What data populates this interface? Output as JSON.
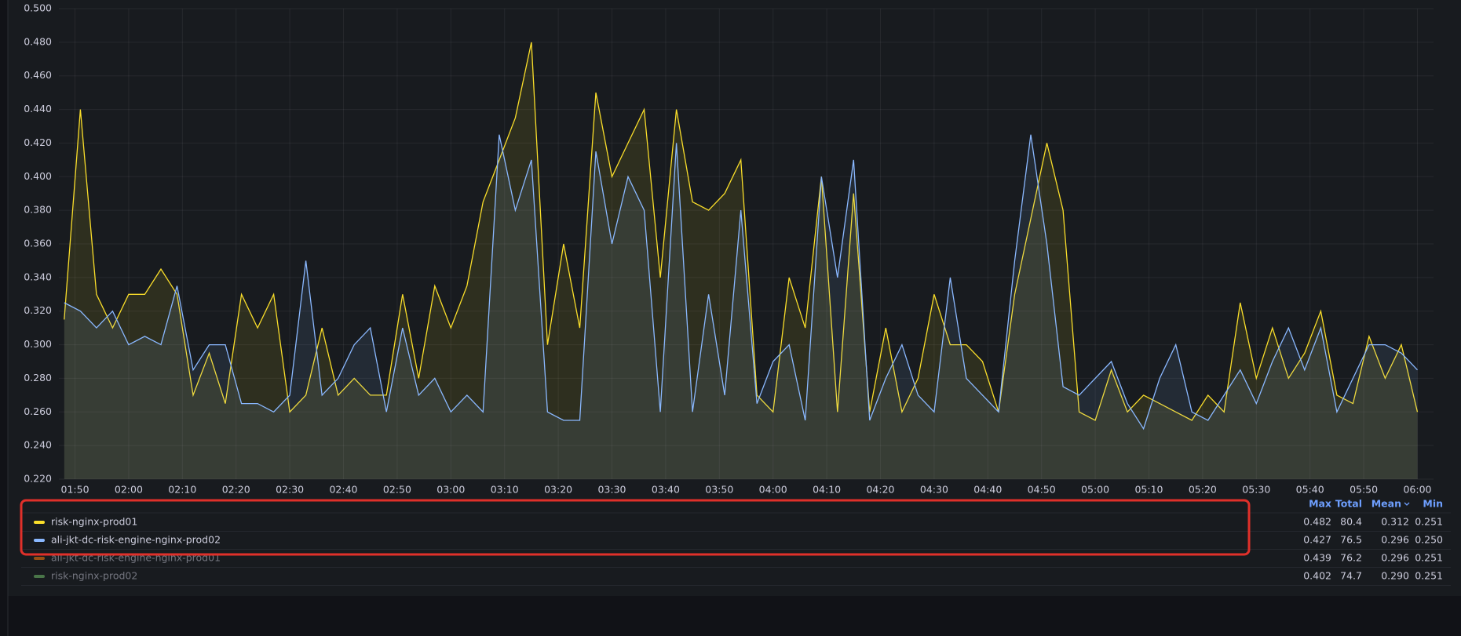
{
  "chart_data": {
    "type": "line",
    "x": [
      "01:48",
      "01:51",
      "01:54",
      "01:57",
      "02:00",
      "02:03",
      "02:06",
      "02:09",
      "02:12",
      "02:15",
      "02:18",
      "02:21",
      "02:24",
      "02:27",
      "02:30",
      "02:33",
      "02:36",
      "02:39",
      "02:42",
      "02:45",
      "02:48",
      "02:51",
      "02:54",
      "02:57",
      "03:00",
      "03:03",
      "03:06",
      "03:09",
      "03:12",
      "03:15",
      "03:18",
      "03:21",
      "03:24",
      "03:27",
      "03:30",
      "03:33",
      "03:36",
      "03:39",
      "03:42",
      "03:45",
      "03:48",
      "03:51",
      "03:54",
      "03:57",
      "04:00",
      "04:03",
      "04:06",
      "04:09",
      "04:12",
      "04:15",
      "04:18",
      "04:21",
      "04:24",
      "04:27",
      "04:30",
      "04:33",
      "04:36",
      "04:39",
      "04:42",
      "04:45",
      "04:48",
      "04:51",
      "04:54",
      "04:57",
      "05:00",
      "05:03",
      "05:06",
      "05:09",
      "05:12",
      "05:15",
      "05:18",
      "05:21",
      "05:24",
      "05:27",
      "05:30",
      "05:33",
      "05:36",
      "05:39",
      "05:42",
      "05:45",
      "05:48",
      "05:51",
      "05:54",
      "05:57",
      "06:00"
    ],
    "series": [
      {
        "name": "risk-nginx-prod01",
        "color": "#fade2a",
        "hidden": false,
        "stats": [
          "0.482",
          "80.4",
          "0.312",
          "0.251"
        ],
        "values": [
          0.315,
          0.44,
          0.33,
          0.31,
          0.33,
          0.33,
          0.345,
          0.33,
          0.27,
          0.295,
          0.265,
          0.33,
          0.31,
          0.33,
          0.26,
          0.27,
          0.31,
          0.27,
          0.28,
          0.27,
          0.27,
          0.33,
          0.28,
          0.335,
          0.31,
          0.335,
          0.385,
          0.41,
          0.435,
          0.48,
          0.3,
          0.36,
          0.31,
          0.45,
          0.4,
          0.42,
          0.44,
          0.34,
          0.44,
          0.385,
          0.38,
          0.39,
          0.41,
          0.27,
          0.26,
          0.34,
          0.31,
          0.4,
          0.26,
          0.39,
          0.26,
          0.31,
          0.26,
          0.28,
          0.33,
          0.3,
          0.3,
          0.29,
          0.26,
          0.33,
          0.375,
          0.42,
          0.38,
          0.26,
          0.255,
          0.285,
          0.26,
          0.27,
          0.265,
          0.26,
          0.255,
          0.27,
          0.26,
          0.325,
          0.28,
          0.31,
          0.28,
          0.295,
          0.32,
          0.27,
          0.265,
          0.305,
          0.28,
          0.3,
          0.26
        ]
      },
      {
        "name": "ali-jkt-dc-risk-engine-nginx-prod02",
        "color": "#8ab8ff",
        "hidden": false,
        "stats": [
          "0.427",
          "76.5",
          "0.296",
          "0.250"
        ],
        "values": [
          0.325,
          0.32,
          0.31,
          0.32,
          0.3,
          0.305,
          0.3,
          0.335,
          0.285,
          0.3,
          0.3,
          0.265,
          0.265,
          0.26,
          0.27,
          0.35,
          0.27,
          0.28,
          0.3,
          0.31,
          0.26,
          0.31,
          0.27,
          0.28,
          0.26,
          0.27,
          0.26,
          0.425,
          0.38,
          0.41,
          0.26,
          0.255,
          0.255,
          0.415,
          0.36,
          0.4,
          0.38,
          0.26,
          0.42,
          0.26,
          0.33,
          0.27,
          0.38,
          0.265,
          0.29,
          0.3,
          0.255,
          0.4,
          0.34,
          0.41,
          0.255,
          0.28,
          0.3,
          0.27,
          0.26,
          0.34,
          0.28,
          0.27,
          0.26,
          0.35,
          0.425,
          0.36,
          0.275,
          0.27,
          0.28,
          0.29,
          0.265,
          0.25,
          0.28,
          0.3,
          0.26,
          0.255,
          0.27,
          0.285,
          0.265,
          0.29,
          0.31,
          0.285,
          0.31,
          0.26,
          0.28,
          0.3,
          0.3,
          0.295,
          0.285
        ]
      },
      {
        "name": "ali-jkt-dc-risk-engine-nginx-prod01",
        "color": "#ff780a",
        "hidden": true,
        "stats": [
          "0.439",
          "76.2",
          "0.296",
          "0.251"
        ]
      },
      {
        "name": "risk-nginx-prod02",
        "color": "#73bf69",
        "hidden": true,
        "stats": [
          "0.402",
          "74.7",
          "0.290",
          "0.251"
        ]
      }
    ],
    "legend_columns": [
      "Max",
      "Total",
      "Mean",
      "Min"
    ],
    "xlim": [
      "01:47",
      "06:03"
    ],
    "xticks": [
      "01:50",
      "02:00",
      "02:10",
      "02:20",
      "02:30",
      "02:40",
      "02:50",
      "03:00",
      "03:10",
      "03:20",
      "03:30",
      "03:40",
      "03:50",
      "04:00",
      "04:10",
      "04:20",
      "04:30",
      "04:40",
      "04:50",
      "05:00",
      "05:10",
      "05:20",
      "05:30",
      "05:40",
      "05:50",
      "06:00"
    ],
    "ylim": [
      0.22,
      0.5
    ],
    "yticks": [
      {
        "value": 0.22,
        "label": "0.220"
      },
      {
        "value": 0.24,
        "label": "0.240"
      },
      {
        "value": 0.26,
        "label": "0.260"
      },
      {
        "value": 0.28,
        "label": "0.280"
      },
      {
        "value": 0.3,
        "label": "0.300"
      },
      {
        "value": 0.32,
        "label": "0.320"
      },
      {
        "value": 0.34,
        "label": "0.340"
      },
      {
        "value": 0.36,
        "label": "0.360"
      },
      {
        "value": 0.38,
        "label": "0.380"
      },
      {
        "value": 0.4,
        "label": "0.400"
      },
      {
        "value": 0.42,
        "label": "0.420"
      },
      {
        "value": 0.44,
        "label": "0.440"
      },
      {
        "value": 0.46,
        "label": "0.460"
      },
      {
        "value": 0.48,
        "label": "0.480"
      },
      {
        "value": 0.5,
        "label": "0.500"
      }
    ],
    "grid": true
  }
}
